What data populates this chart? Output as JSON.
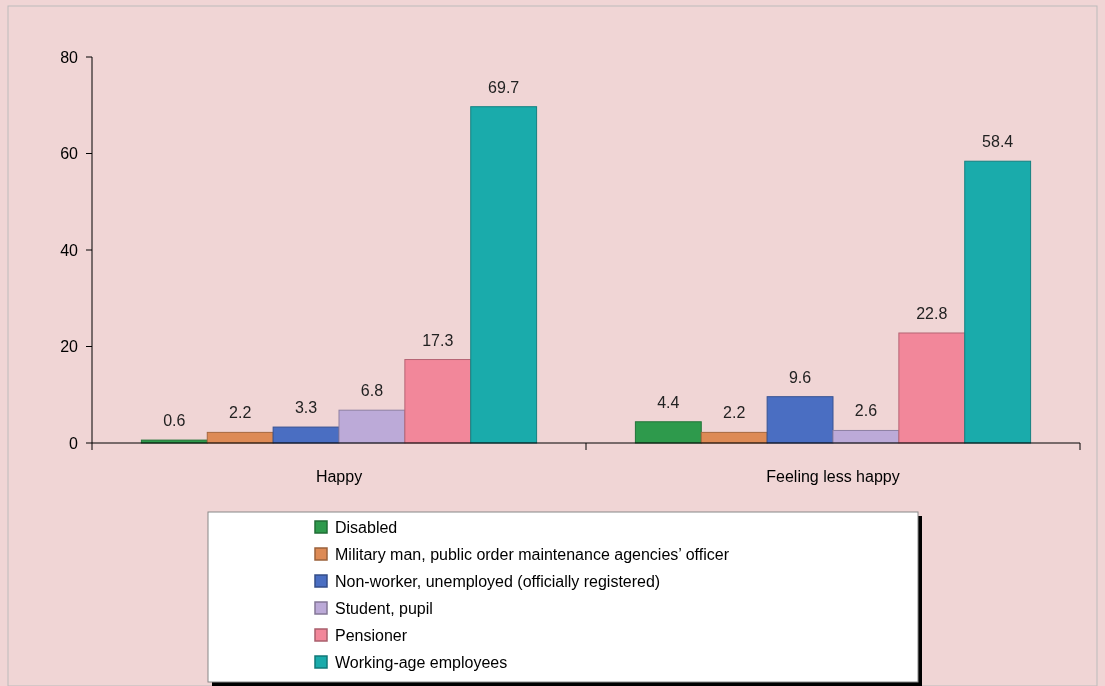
{
  "chart_data": {
    "type": "bar",
    "categories": [
      "Happy",
      "Feeling less happy"
    ],
    "series": [
      {
        "name": "Disabled",
        "color": "#2e9a4c",
        "values": [
          0.6,
          4.4
        ]
      },
      {
        "name": "Military man, public order maintenance agencies’ officer",
        "color": "#dd8a55",
        "values": [
          2.2,
          2.2
        ]
      },
      {
        "name": "Non-worker, unemployed (officially registered)",
        "color": "#4a6ec2",
        "values": [
          3.3,
          9.6
        ]
      },
      {
        "name": "Student, pupil",
        "color": "#bcaad8",
        "values": [
          6.8,
          2.6
        ]
      },
      {
        "name": "Pensioner",
        "color": "#f2879a",
        "values": [
          17.3,
          22.8
        ]
      },
      {
        "name": "Working-age employees",
        "color": "#1aabab",
        "values": [
          69.7,
          58.4
        ]
      }
    ],
    "ylim": [
      0,
      80
    ],
    "yticks": [
      0,
      20,
      40,
      60,
      80
    ],
    "grid": false,
    "legend": "bottom",
    "data_labels": true
  }
}
